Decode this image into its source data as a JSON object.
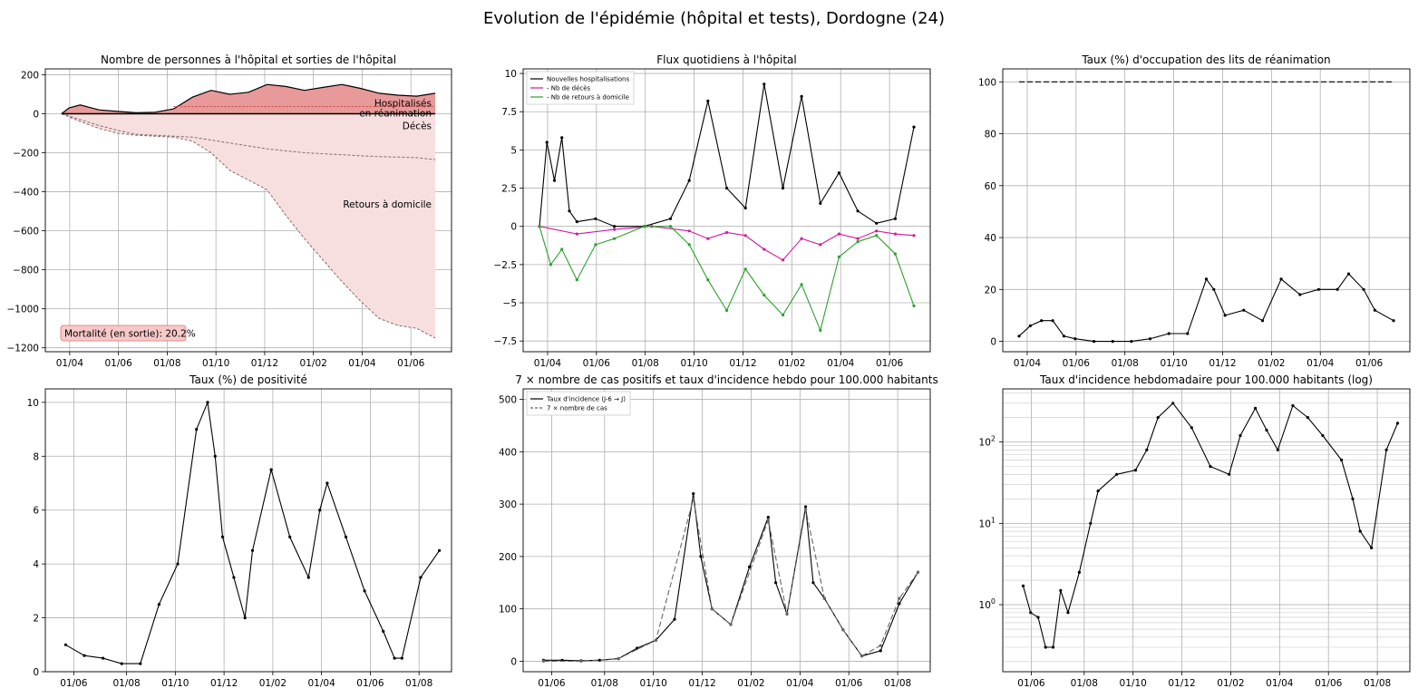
{
  "figure_title": "Evolution de l'épidémie (hôpital et tests), Dordogne (24)",
  "chart_data": [
    {
      "type": "area",
      "title": "Nombre de personnes à l'hôpital et sorties de l'hôpital",
      "xlabel": "",
      "ylabel": "",
      "x_ticks": [
        "01/04",
        "01/06",
        "01/08",
        "01/10",
        "01/12",
        "01/02",
        "01/04",
        "01/06",
        "01/08"
      ],
      "y_ticks": [
        200,
        0,
        -200,
        -400,
        -600,
        -800,
        -1000,
        -1200
      ],
      "ylim": [
        -1220,
        230
      ],
      "grid": true,
      "colors": {
        "hospitalises": "#e89a9a",
        "deaths": "#c94444",
        "retours": "#f7dfe0",
        "line": "#000000",
        "dashed": "#8a6a6a"
      },
      "annotations": [
        "Hospitalisés",
        "en réanimation",
        "Décès",
        "Retours à domicile"
      ],
      "mortality_label": "Mortalité (en sortie): 20.2%",
      "series": [
        {
          "name": "Hospitalisés",
          "x": [
            0,
            0.02,
            0.05,
            0.1,
            0.15,
            0.2,
            0.25,
            0.3,
            0.35,
            0.4,
            0.45,
            0.5,
            0.55,
            0.6,
            0.65,
            0.7,
            0.75,
            0.8,
            0.85,
            0.9,
            0.95,
            1.0
          ],
          "values": [
            0,
            30,
            45,
            20,
            12,
            5,
            8,
            25,
            85,
            120,
            100,
            110,
            150,
            140,
            120,
            135,
            150,
            130,
            105,
            95,
            90,
            105
          ]
        },
        {
          "name": "Décès",
          "x": [
            0,
            0.05,
            0.1,
            0.15,
            0.2,
            0.25,
            0.3,
            0.35,
            0.4,
            0.45,
            0.5,
            0.55,
            0.6,
            0.65,
            0.7,
            0.75,
            0.8,
            0.85,
            0.9,
            0.95,
            1.0
          ],
          "values": [
            0,
            -30,
            -60,
            -85,
            -105,
            -110,
            -115,
            -120,
            -135,
            -150,
            -165,
            -180,
            -190,
            -200,
            -205,
            -210,
            -215,
            -220,
            -222,
            -225,
            -235
          ]
        },
        {
          "name": "Retours à domicile",
          "x": [
            0,
            0.05,
            0.1,
            0.15,
            0.2,
            0.25,
            0.3,
            0.35,
            0.4,
            0.45,
            0.5,
            0.55,
            0.6,
            0.65,
            0.7,
            0.75,
            0.8,
            0.85,
            0.9,
            0.95,
            1.0
          ],
          "values": [
            0,
            -40,
            -75,
            -100,
            -110,
            -115,
            -120,
            -140,
            -200,
            -290,
            -340,
            -390,
            -520,
            -640,
            -750,
            -860,
            -960,
            -1050,
            -1085,
            -1100,
            -1150
          ]
        }
      ]
    },
    {
      "type": "line",
      "title": "Flux quotidiens à l'hôpital",
      "x_ticks": [
        "01/04",
        "01/06",
        "01/08",
        "01/10",
        "01/12",
        "01/02",
        "01/04",
        "01/06",
        "01/08"
      ],
      "y_ticks": [
        10.0,
        7.5,
        5.0,
        2.5,
        0.0,
        -2.5,
        -5.0,
        -7.5
      ],
      "ylim": [
        -8.2,
        10.3
      ],
      "grid": true,
      "legend_position": "top-left",
      "series": [
        {
          "name": "Nouvelles hospitalisations",
          "color": "#000000",
          "x": [
            0,
            0.02,
            0.04,
            0.06,
            0.08,
            0.1,
            0.15,
            0.2,
            0.28,
            0.35,
            0.4,
            0.45,
            0.5,
            0.55,
            0.6,
            0.65,
            0.7,
            0.75,
            0.8,
            0.85,
            0.9,
            0.95,
            1.0
          ],
          "values": [
            0,
            5.5,
            3,
            5.8,
            1,
            0.3,
            0.5,
            0,
            0,
            0.5,
            3,
            8.2,
            2.5,
            1.2,
            9.3,
            2.5,
            8.5,
            1.5,
            3.5,
            1,
            0.2,
            0.5,
            6.5
          ]
        },
        {
          "name": "- Nb de décès",
          "color": "#d4189c",
          "x": [
            0,
            0.1,
            0.2,
            0.3,
            0.4,
            0.45,
            0.5,
            0.55,
            0.6,
            0.65,
            0.7,
            0.75,
            0.8,
            0.85,
            0.9,
            0.95,
            1.0
          ],
          "values": [
            0,
            -0.5,
            -0.2,
            0,
            -0.3,
            -0.8,
            -0.4,
            -0.6,
            -1.5,
            -2.2,
            -0.8,
            -1.2,
            -0.5,
            -0.8,
            -0.3,
            -0.5,
            -0.6
          ]
        },
        {
          "name": "- Nb de retours à domicile",
          "color": "#2ca02c",
          "x": [
            0,
            0.03,
            0.06,
            0.1,
            0.15,
            0.2,
            0.28,
            0.35,
            0.4,
            0.45,
            0.5,
            0.55,
            0.6,
            0.65,
            0.7,
            0.75,
            0.8,
            0.85,
            0.9,
            0.95,
            1.0
          ],
          "values": [
            0,
            -2.5,
            -1.5,
            -3.5,
            -1.2,
            -0.8,
            0,
            0,
            -1.2,
            -3.5,
            -5.5,
            -2.8,
            -4.5,
            -5.8,
            -3.8,
            -6.8,
            -2,
            -1,
            -0.6,
            -1.8,
            -5.2
          ]
        }
      ]
    },
    {
      "type": "line",
      "title": "Taux (%) d'occupation des lits de réanimation",
      "x_ticks": [
        "01/04",
        "01/06",
        "01/08",
        "01/10",
        "01/12",
        "01/02",
        "01/04",
        "01/06",
        "01/08"
      ],
      "y_ticks": [
        100,
        80,
        60,
        40,
        20,
        0
      ],
      "ylim": [
        -4,
        105
      ],
      "grid": true,
      "series": [
        {
          "name": "",
          "color": "#000000",
          "style": "dashed",
          "x": [
            0,
            1
          ],
          "values": [
            100,
            100
          ]
        },
        {
          "name": "",
          "color": "#000000",
          "x": [
            0,
            0.03,
            0.06,
            0.09,
            0.12,
            0.15,
            0.2,
            0.25,
            0.3,
            0.35,
            0.4,
            0.45,
            0.5,
            0.52,
            0.55,
            0.6,
            0.65,
            0.7,
            0.75,
            0.8,
            0.85,
            0.88,
            0.92,
            0.95,
            1.0
          ],
          "values": [
            2,
            6,
            8,
            8,
            2,
            1,
            0,
            0,
            0,
            1,
            3,
            3,
            24,
            20,
            10,
            12,
            8,
            24,
            18,
            20,
            20,
            26,
            20,
            12,
            8
          ]
        }
      ]
    },
    {
      "type": "line",
      "title": "Taux (%) de positivité",
      "x_ticks": [
        "01/06",
        "01/08",
        "01/10",
        "01/12",
        "01/02",
        "01/04",
        "01/06",
        "01/08"
      ],
      "y_ticks": [
        10,
        8,
        6,
        4,
        2,
        0
      ],
      "ylim": [
        0,
        10.5
      ],
      "grid": true,
      "series": [
        {
          "name": "",
          "color": "#000000",
          "x": [
            0,
            0.05,
            0.1,
            0.15,
            0.2,
            0.25,
            0.3,
            0.35,
            0.38,
            0.4,
            0.42,
            0.45,
            0.48,
            0.5,
            0.55,
            0.6,
            0.65,
            0.68,
            0.7,
            0.75,
            0.8,
            0.85,
            0.88,
            0.9,
            0.95,
            1.0
          ],
          "values": [
            1,
            0.6,
            0.5,
            0.3,
            0.3,
            2.5,
            4,
            9,
            10,
            8,
            5,
            3.5,
            2,
            4.5,
            7.5,
            5,
            3.5,
            6,
            7,
            5,
            3,
            1.5,
            0.5,
            0.5,
            3.5,
            4.5
          ]
        }
      ]
    },
    {
      "type": "line",
      "title": "7 × nombre de cas positifs et taux d'incidence hebdo pour 100.000 habitants",
      "x_ticks": [
        "01/06",
        "01/08",
        "01/10",
        "01/12",
        "01/02",
        "01/04",
        "01/06",
        "01/08"
      ],
      "y_ticks": [
        500,
        400,
        300,
        200,
        100,
        0
      ],
      "ylim": [
        -20,
        520
      ],
      "grid": true,
      "legend_position": "top-left",
      "series": [
        {
          "name": "Taux d'incidence (J-6 → J)",
          "color": "#000000",
          "x": [
            0,
            0.05,
            0.1,
            0.15,
            0.2,
            0.25,
            0.3,
            0.35,
            0.4,
            0.42,
            0.45,
            0.5,
            0.55,
            0.6,
            0.62,
            0.65,
            0.7,
            0.72,
            0.75,
            0.8,
            0.85,
            0.9,
            0.95,
            1.0
          ],
          "values": [
            2,
            2,
            1,
            2,
            5,
            25,
            40,
            80,
            320,
            200,
            100,
            70,
            180,
            275,
            150,
            90,
            295,
            150,
            120,
            60,
            10,
            20,
            110,
            170
          ]
        },
        {
          "name": "7 × nombre de cas",
          "color": "#666666",
          "style": "dashed",
          "x": [
            0,
            0.1,
            0.2,
            0.3,
            0.4,
            0.45,
            0.5,
            0.6,
            0.65,
            0.7,
            0.75,
            0.8,
            0.85,
            0.9,
            0.95,
            1.0
          ],
          "values": [
            0,
            0,
            5,
            40,
            310,
            100,
            70,
            270,
            90,
            290,
            120,
            60,
            10,
            30,
            120,
            170
          ]
        }
      ]
    },
    {
      "type": "line",
      "title": "Taux d'incidence hebdomadaire pour 100.000 habitants (log)",
      "x_ticks": [
        "01/06",
        "01/08",
        "01/10",
        "01/12",
        "01/02",
        "01/04",
        "01/06",
        "01/08"
      ],
      "y_ticks": [
        "10^0",
        "10^1",
        "10^2"
      ],
      "y_scale": "log",
      "ylim": [
        0.15,
        450
      ],
      "grid": true,
      "series": [
        {
          "name": "",
          "color": "#000000",
          "x": [
            0,
            0.02,
            0.04,
            0.06,
            0.08,
            0.1,
            0.12,
            0.15,
            0.18,
            0.2,
            0.25,
            0.3,
            0.33,
            0.36,
            0.4,
            0.45,
            0.5,
            0.55,
            0.58,
            0.62,
            0.65,
            0.68,
            0.72,
            0.76,
            0.8,
            0.85,
            0.88,
            0.9,
            0.93,
            0.97,
            1.0
          ],
          "values": [
            1.7,
            0.8,
            0.7,
            0.3,
            0.3,
            1.5,
            0.8,
            2.5,
            10,
            25,
            40,
            45,
            80,
            200,
            300,
            150,
            50,
            40,
            120,
            260,
            140,
            80,
            280,
            200,
            120,
            60,
            20,
            8,
            5,
            80,
            170
          ]
        }
      ]
    }
  ]
}
